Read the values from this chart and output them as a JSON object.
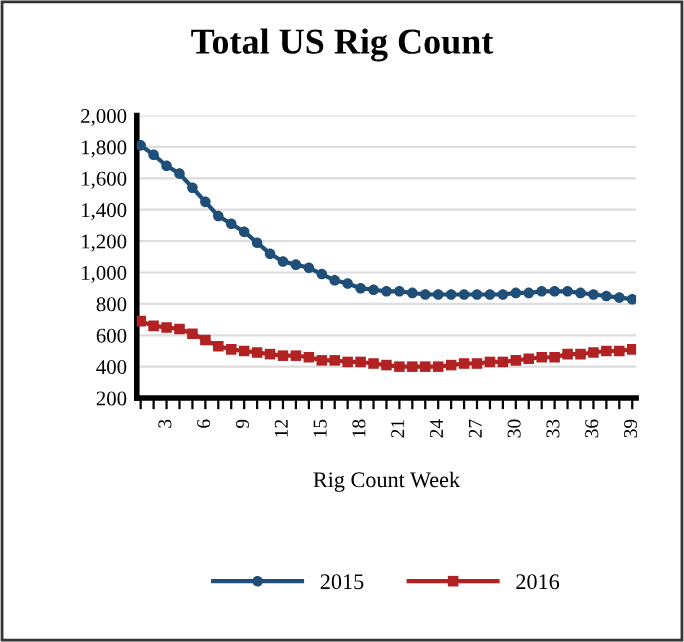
{
  "chart_data": {
    "type": "line",
    "title": "Total US Rig Count",
    "xlabel": "Rig Count Week",
    "categories": [
      null,
      null,
      "3",
      null,
      null,
      "6",
      null,
      null,
      "9",
      null,
      null,
      "12",
      null,
      null,
      "15",
      null,
      null,
      "18",
      null,
      null,
      "21",
      null,
      null,
      "24",
      null,
      null,
      "27",
      null,
      null,
      "30",
      null,
      null,
      "33",
      null,
      null,
      "36",
      null,
      null,
      "39"
    ],
    "series": [
      {
        "name": "2015",
        "color": "#1f4e79",
        "marker": "circle",
        "values": [
          1810,
          1750,
          1680,
          1630,
          1540,
          1450,
          1360,
          1310,
          1260,
          1190,
          1120,
          1070,
          1050,
          1030,
          990,
          950,
          930,
          900,
          890,
          880,
          880,
          870,
          860,
          860,
          860,
          860,
          860,
          860,
          860,
          870,
          870,
          880,
          880,
          880,
          870,
          860,
          850,
          840,
          830
        ]
      },
      {
        "name": "2016",
        "color": "#b22222",
        "marker": "square",
        "values": [
          690,
          660,
          650,
          640,
          610,
          570,
          530,
          510,
          500,
          490,
          480,
          470,
          470,
          460,
          440,
          440,
          430,
          430,
          420,
          410,
          400,
          400,
          400,
          400,
          410,
          420,
          420,
          430,
          430,
          440,
          450,
          460,
          460,
          480,
          480,
          490,
          500,
          500,
          510
        ]
      }
    ],
    "ylim": [
      200,
      2000
    ],
    "yticks": [
      {
        "value": 200,
        "label": "200"
      },
      {
        "value": 400,
        "label": "400"
      },
      {
        "value": 600,
        "label": "600"
      },
      {
        "value": 800,
        "label": "800"
      },
      {
        "value": 1000,
        "label": "1,000"
      },
      {
        "value": 1200,
        "label": "1,200"
      },
      {
        "value": 1400,
        "label": "1,400"
      },
      {
        "value": 1600,
        "label": "1,600"
      },
      {
        "value": 1800,
        "label": "1,800"
      },
      {
        "value": 2000,
        "label": "2,000"
      }
    ],
    "grid": "y",
    "legend": "bottom"
  }
}
